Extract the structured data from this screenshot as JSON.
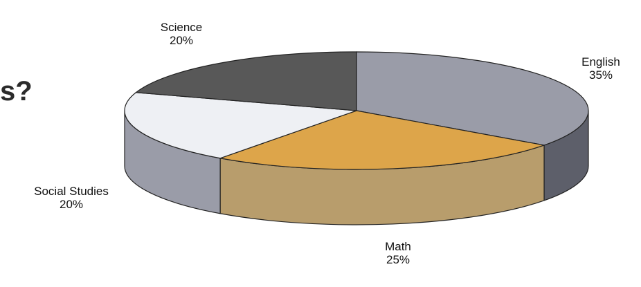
{
  "header": {
    "cut_text": "s?"
  },
  "chart_data": {
    "type": "pie",
    "title": "",
    "slices": [
      {
        "label": "English",
        "value": 35,
        "display": "35%",
        "color": "#9a9ca8",
        "side_color": "#5d5f6a"
      },
      {
        "label": "Math",
        "value": 25,
        "display": "25%",
        "color": "#dda54a",
        "side_color": "#b89d6c"
      },
      {
        "label": "Social Studies",
        "value": 20,
        "display": "20%",
        "color": "#eef0f4",
        "side_color": "#9a9ca8"
      },
      {
        "label": "Science",
        "value": 20,
        "display": "20%",
        "color": "#585858",
        "side_color": "#3c3c3c"
      }
    ]
  }
}
